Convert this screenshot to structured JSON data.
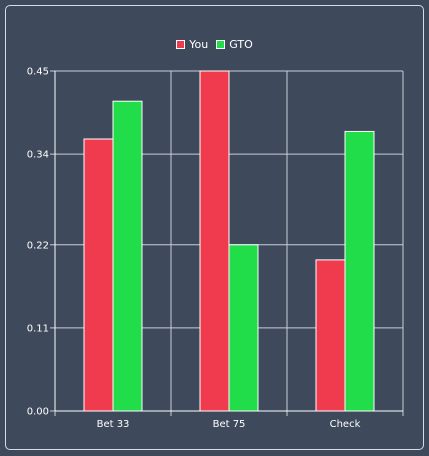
{
  "chart_data": {
    "type": "bar",
    "categories": [
      "Bet 33",
      "Bet 75",
      "Check"
    ],
    "series": [
      {
        "name": "You",
        "color": "#f03b4e",
        "values": [
          0.36,
          0.45,
          0.2
        ]
      },
      {
        "name": "GTO",
        "color": "#22dd4a",
        "values": [
          0.41,
          0.22,
          0.37
        ]
      }
    ],
    "ylim": [
      0,
      0.45
    ],
    "yticks": [
      "0.00",
      "0.11",
      "0.22",
      "0.34",
      "0.45"
    ],
    "legend_position": "top-center",
    "grid": true,
    "title": "",
    "xlabel": "",
    "ylabel": ""
  }
}
